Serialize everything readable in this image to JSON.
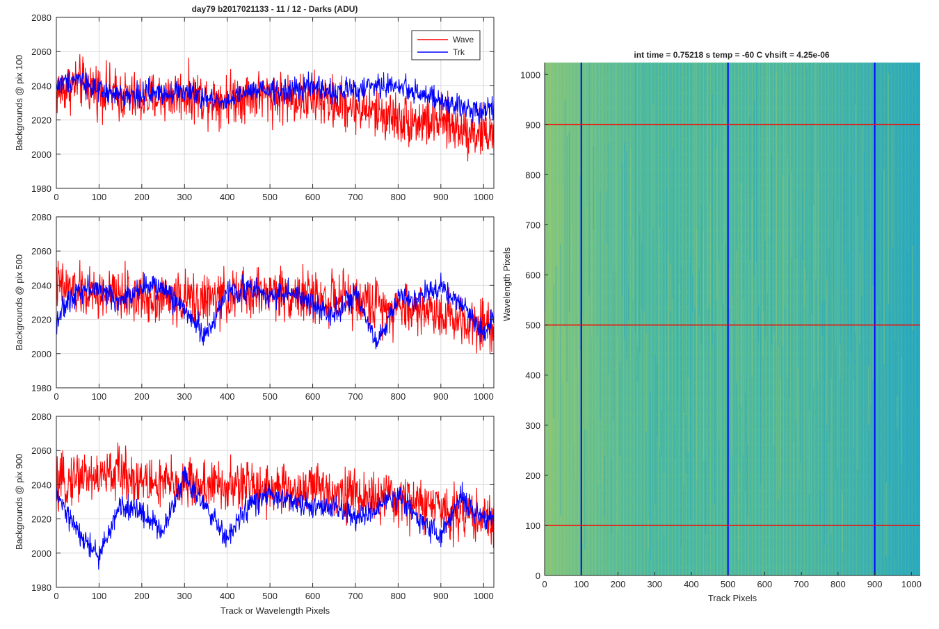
{
  "figure": {
    "title": "day79 b2017021133 - 11 / 12 - Darks (ADU)",
    "right_title": "int time = 0.75218 s    temp = -60 C    vhsift = 4.25e-06"
  },
  "colors": {
    "wave": "#ff0000",
    "trk": "#0000ff",
    "axes": "#262626",
    "grid": "#d9d9d9",
    "heatmap_low": "#1fa2c9",
    "heatmap_mid": "#48b8a6",
    "heatmap_high": "#9fcc6a"
  },
  "chart_data": [
    {
      "type": "line",
      "xlabel": "",
      "ylabel": "Backgrounds @ pix 100",
      "xlim": [
        0,
        1024
      ],
      "ylim": [
        1980,
        2080
      ],
      "xticks": [
        0,
        100,
        200,
        300,
        400,
        500,
        600,
        700,
        800,
        900,
        1000
      ],
      "yticks": [
        1980,
        2000,
        2020,
        2040,
        2060,
        2080
      ],
      "grid": true,
      "legend": "top-right",
      "x": [
        0,
        50,
        100,
        150,
        200,
        250,
        300,
        350,
        400,
        450,
        500,
        550,
        600,
        650,
        700,
        750,
        800,
        850,
        900,
        950,
        1000,
        1024
      ],
      "series": [
        {
          "name": "Wave",
          "values": [
            2036,
            2042,
            2038,
            2034,
            2032,
            2034,
            2035,
            2033,
            2033,
            2035,
            2034,
            2033,
            2032,
            2030,
            2028,
            2024,
            2021,
            2019,
            2019,
            2015,
            2012,
            2013
          ]
        },
        {
          "name": "Trk",
          "values": [
            2040,
            2045,
            2036,
            2034,
            2035,
            2036,
            2037,
            2032,
            2031,
            2036,
            2037,
            2037,
            2040,
            2036,
            2038,
            2040,
            2040,
            2036,
            2030,
            2027,
            2026,
            2028
          ]
        }
      ]
    },
    {
      "type": "line",
      "xlabel": "",
      "ylabel": "Backgrounds @ pix 500",
      "xlim": [
        0,
        1024
      ],
      "ylim": [
        1980,
        2080
      ],
      "xticks": [
        0,
        100,
        200,
        300,
        400,
        500,
        600,
        700,
        800,
        900,
        1000
      ],
      "yticks": [
        1980,
        2000,
        2020,
        2040,
        2060,
        2080
      ],
      "grid": true,
      "legend": "none",
      "x": [
        0,
        50,
        100,
        150,
        200,
        250,
        300,
        350,
        400,
        450,
        500,
        550,
        600,
        650,
        700,
        750,
        800,
        850,
        900,
        950,
        1000,
        1024
      ],
      "series": [
        {
          "name": "Wave",
          "values": [
            2040,
            2036,
            2034,
            2034,
            2033,
            2033,
            2032,
            2031,
            2033,
            2035,
            2036,
            2035,
            2033,
            2032,
            2031,
            2029,
            2027,
            2026,
            2024,
            2020,
            2018,
            2016
          ]
        },
        {
          "name": "Trk",
          "values": [
            2020,
            2038,
            2038,
            2030,
            2040,
            2038,
            2026,
            2010,
            2036,
            2038,
            2034,
            2036,
            2028,
            2024,
            2034,
            2005,
            2033,
            2032,
            2040,
            2028,
            2012,
            2022
          ]
        }
      ]
    },
    {
      "type": "line",
      "xlabel": "Track or Wavelength Pixels",
      "ylabel": "Backgrounds @ pix 900",
      "xlim": [
        0,
        1024
      ],
      "ylim": [
        1980,
        2080
      ],
      "xticks": [
        0,
        100,
        200,
        300,
        400,
        500,
        600,
        700,
        800,
        900,
        1000
      ],
      "yticks": [
        1980,
        2000,
        2020,
        2040,
        2060,
        2080
      ],
      "grid": true,
      "legend": "none",
      "x": [
        0,
        50,
        100,
        150,
        200,
        250,
        300,
        350,
        400,
        450,
        500,
        550,
        600,
        650,
        700,
        750,
        800,
        850,
        900,
        950,
        1000,
        1024
      ],
      "series": [
        {
          "name": "Wave",
          "values": [
            2038,
            2046,
            2044,
            2048,
            2042,
            2040,
            2041,
            2040,
            2038,
            2040,
            2038,
            2036,
            2038,
            2037,
            2034,
            2032,
            2031,
            2029,
            2026,
            2024,
            2020,
            2018
          ]
        },
        {
          "name": "Trk",
          "values": [
            2034,
            2012,
            1998,
            2028,
            2024,
            2013,
            2046,
            2026,
            2008,
            2028,
            2034,
            2030,
            2026,
            2028,
            2020,
            2026,
            2034,
            2020,
            2010,
            2033,
            2018,
            2022
          ]
        }
      ]
    },
    {
      "type": "heatmap",
      "xlabel": "Track Pixels",
      "ylabel": "Wavelength Pixels",
      "xlim": [
        0,
        1024
      ],
      "ylim": [
        0,
        1024
      ],
      "xticks": [
        0,
        100,
        200,
        300,
        400,
        500,
        600,
        700,
        800,
        900,
        1000
      ],
      "yticks": [
        0,
        100,
        200,
        300,
        400,
        500,
        600,
        700,
        800,
        900,
        1000
      ],
      "grid": false,
      "vertical_markers": [
        100,
        500,
        900
      ],
      "horizontal_markers": [
        100,
        500,
        900
      ]
    }
  ]
}
